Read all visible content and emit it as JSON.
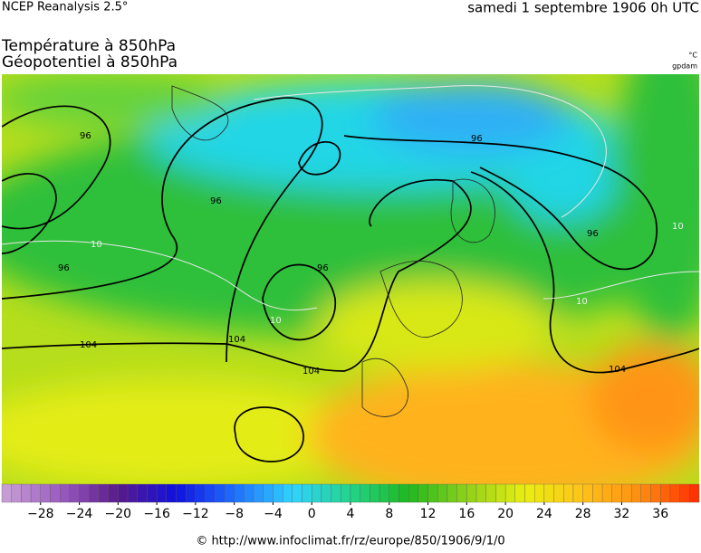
{
  "header": {
    "source": "NCEP Reanalysis 2.5°",
    "date": "samedi 1 septembre 1906 0h UTC",
    "title1": "Température à 850hPa",
    "title2": "Géopotentiel à 850hPa",
    "unit1": "°C",
    "unit2": "gpdam"
  },
  "map": {
    "contour_labels": [
      "96",
      "96",
      "96",
      "96",
      "96",
      "96",
      "104",
      "104",
      "104",
      "104",
      "10",
      "10",
      "10",
      "10"
    ]
  },
  "colorbar": {
    "lim": [
      -32,
      40
    ],
    "step": 1,
    "color_stops": [
      "#c9a3d6",
      "#9b5cc0",
      "#5a1a8a",
      "#1010e0",
      "#1f6fff",
      "#2fd3ff",
      "#22d48a",
      "#1fb81f",
      "#8fd11a",
      "#e9ee10",
      "#ffc21a",
      "#ff8c10",
      "#ff2a00"
    ],
    "ticks": [
      {
        "value": -28,
        "label": "−28"
      },
      {
        "value": -24,
        "label": "−24"
      },
      {
        "value": -20,
        "label": "−20"
      },
      {
        "value": -16,
        "label": "−16"
      },
      {
        "value": -12,
        "label": "−12"
      },
      {
        "value": -8,
        "label": "−8"
      },
      {
        "value": -4,
        "label": "−4"
      },
      0,
      4,
      8,
      12,
      16,
      20,
      24,
      28,
      32,
      36
    ]
  },
  "footer": "© http://www.infoclimat.fr/rz/europe/850/1906/9/1/0"
}
